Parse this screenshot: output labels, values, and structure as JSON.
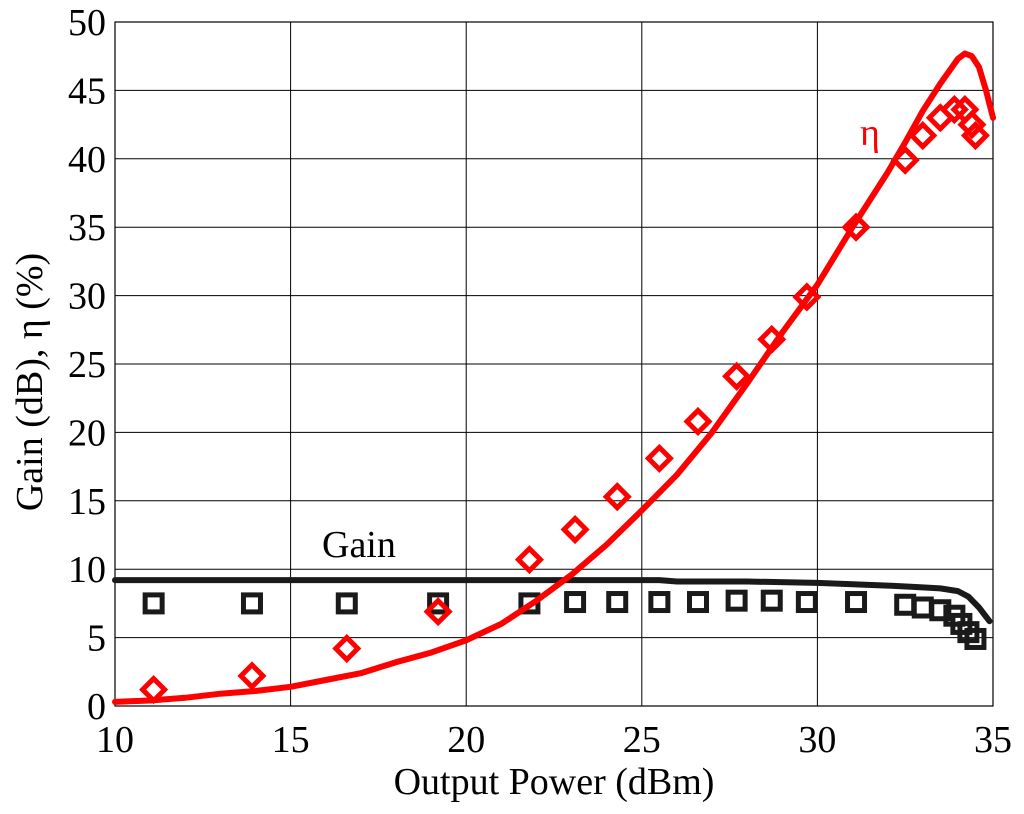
{
  "chart_data": {
    "type": "line",
    "xlabel": "Output Power (dBm)",
    "ylabel": "Gain (dB), η (%)",
    "xlim": [
      10,
      35
    ],
    "ylim": [
      0,
      50
    ],
    "xticks": [
      10,
      15,
      20,
      25,
      30,
      35
    ],
    "yticks": [
      0,
      5,
      10,
      15,
      20,
      25,
      30,
      35,
      40,
      45,
      50
    ],
    "grid": true,
    "annotations": [
      {
        "text": "Gain",
        "color": "#000000"
      },
      {
        "text": "η",
        "color": "#ff0000"
      }
    ],
    "colors": {
      "gain": "#1a1a1a",
      "efficiency": "#ff0000"
    },
    "series": [
      {
        "kind": "simulated",
        "style": "line",
        "color": "#1a1a1a",
        "x": [
          10,
          12,
          14,
          16,
          18,
          20,
          22,
          24,
          25.5,
          26,
          28,
          30,
          31,
          32,
          32.8,
          33.5,
          34,
          34.3,
          34.6,
          34.9
        ],
        "y": [
          9.2,
          9.2,
          9.2,
          9.2,
          9.2,
          9.2,
          9.2,
          9.2,
          9.2,
          9.1,
          9.1,
          9.0,
          8.9,
          8.8,
          8.7,
          8.6,
          8.4,
          8.0,
          7.2,
          6.2
        ]
      },
      {
        "kind": "measured",
        "style": "square-markers",
        "color": "#1a1a1a",
        "x": [
          11.1,
          13.9,
          16.6,
          19.2,
          21.8,
          23.1,
          24.3,
          25.5,
          26.6,
          27.7,
          28.7,
          29.7,
          31.1,
          32.5,
          33.0,
          33.5,
          33.9,
          34.1,
          34.3,
          34.5
        ],
        "y": [
          7.5,
          7.5,
          7.5,
          7.5,
          7.5,
          7.6,
          7.6,
          7.6,
          7.6,
          7.7,
          7.7,
          7.6,
          7.6,
          7.4,
          7.2,
          7.0,
          6.6,
          6.0,
          5.4,
          4.9
        ]
      },
      {
        "kind": "simulated",
        "style": "line",
        "color": "#ff0000",
        "x": [
          10,
          11,
          12,
          13,
          14,
          15,
          16,
          17,
          18,
          19,
          20,
          21,
          22,
          23,
          24,
          25,
          26,
          27,
          28,
          29,
          30,
          31,
          32,
          32.5,
          33,
          33.5,
          34,
          34.2,
          34.4,
          34.6,
          34.8,
          35
        ],
        "y": [
          0.3,
          0.4,
          0.6,
          0.9,
          1.1,
          1.4,
          1.9,
          2.4,
          3.2,
          3.9,
          4.8,
          6.0,
          7.7,
          9.6,
          11.8,
          14.3,
          16.9,
          20.0,
          23.6,
          27.3,
          30.8,
          35.0,
          39.0,
          41.2,
          43.5,
          45.5,
          47.3,
          47.7,
          47.5,
          46.7,
          45.0,
          43.0
        ]
      },
      {
        "kind": "measured",
        "style": "diamond-markers",
        "color": "#ff0000",
        "x": [
          11.1,
          13.9,
          16.6,
          19.2,
          21.8,
          23.1,
          24.3,
          25.5,
          26.6,
          27.7,
          28.7,
          29.7,
          31.1,
          32.5,
          33.0,
          33.5,
          33.9,
          34.2,
          34.4,
          34.5
        ],
        "y": [
          1.2,
          2.2,
          4.2,
          6.9,
          10.7,
          12.9,
          15.3,
          18.1,
          20.8,
          24.1,
          26.8,
          29.9,
          35.0,
          39.9,
          41.7,
          43.0,
          43.6,
          43.6,
          42.5,
          41.7
        ]
      }
    ]
  }
}
